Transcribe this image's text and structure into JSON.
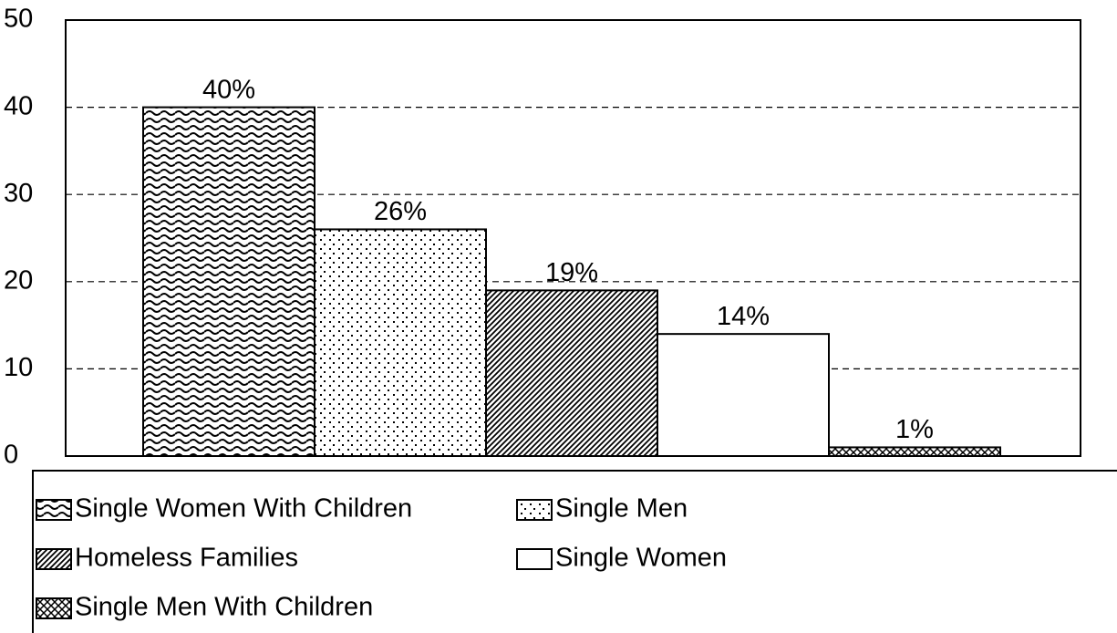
{
  "chart_data": {
    "type": "bar",
    "series": [
      {
        "name": "Single Women With Children",
        "color": "#000000",
        "pattern": "wave",
        "values": [
          40
        ],
        "value_labels": [
          "40%"
        ]
      },
      {
        "name": "Single Men",
        "color": "#000000",
        "pattern": "dots",
        "values": [
          26
        ],
        "value_labels": [
          "26%"
        ]
      },
      {
        "name": "Homeless Families",
        "color": "#000000",
        "pattern": "diagonal",
        "values": [
          19
        ],
        "value_labels": [
          "19%"
        ]
      },
      {
        "name": "Single Women",
        "color": "#000000",
        "pattern": "none",
        "values": [
          14
        ],
        "value_labels": [
          "14%"
        ]
      },
      {
        "name": "Single Men With Children",
        "color": "#000000",
        "pattern": "crosshatch",
        "values": [
          1
        ],
        "value_labels": [
          "1%"
        ]
      }
    ],
    "ylim": [
      0,
      50
    ],
    "yticks": [
      0,
      10,
      20,
      30,
      40,
      50
    ],
    "grid": true,
    "legend": "bottom"
  }
}
